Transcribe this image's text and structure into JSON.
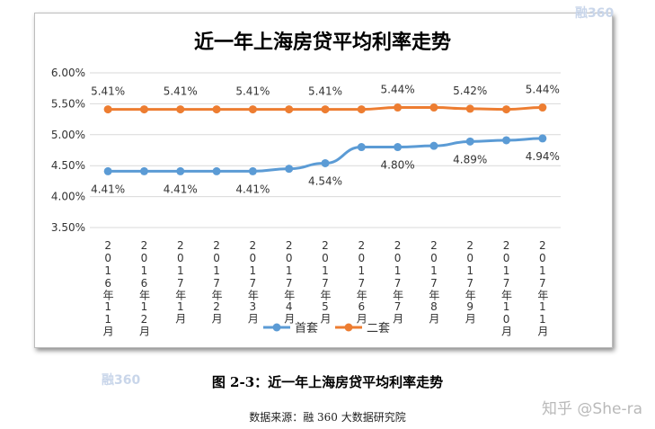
{
  "chart_data": {
    "type": "line",
    "title": "近一年上海房贷平均利率走势",
    "categories": [
      "2016年11月",
      "2016年12月",
      "2017年1月",
      "2017年2月",
      "2017年3月",
      "2017年4月",
      "2017年5月",
      "2017年6月",
      "2017年7月",
      "2017年8月",
      "2017年9月",
      "2017年10月",
      "2017年11月"
    ],
    "ylim": [
      3.5,
      6.0
    ],
    "yticks": [
      "3.50%",
      "4.00%",
      "4.50%",
      "5.00%",
      "5.50%",
      "6.00%"
    ],
    "ytick_values": [
      3.5,
      4.0,
      4.5,
      5.0,
      5.5,
      6.0
    ],
    "grid": true,
    "legend_position": "bottom",
    "series": [
      {
        "name": "首套",
        "color": "#5b9bd5",
        "values": [
          4.41,
          4.41,
          4.41,
          4.41,
          4.41,
          4.45,
          4.54,
          4.8,
          4.8,
          4.82,
          4.89,
          4.91,
          4.94
        ],
        "data_labels": [
          "4.41%",
          "",
          "4.41%",
          "",
          "4.41%",
          "",
          "4.54%",
          "",
          "4.80%",
          "",
          "4.89%",
          "",
          "4.94%"
        ]
      },
      {
        "name": "二套",
        "color": "#ed7d31",
        "values": [
          5.41,
          5.41,
          5.41,
          5.41,
          5.41,
          5.41,
          5.41,
          5.41,
          5.44,
          5.44,
          5.42,
          5.41,
          5.44
        ],
        "data_labels": [
          "5.41%",
          "",
          "5.41%",
          "",
          "5.41%",
          "",
          "5.41%",
          "",
          "5.44%",
          "",
          "5.42%",
          "",
          "5.44%"
        ]
      }
    ]
  },
  "caption": "图 2-3：近一年上海房贷平均利率走势",
  "source": "数据来源：融 360 大数据研究院",
  "watermark": "知乎 @She-ra",
  "logo_watermark": "融360"
}
